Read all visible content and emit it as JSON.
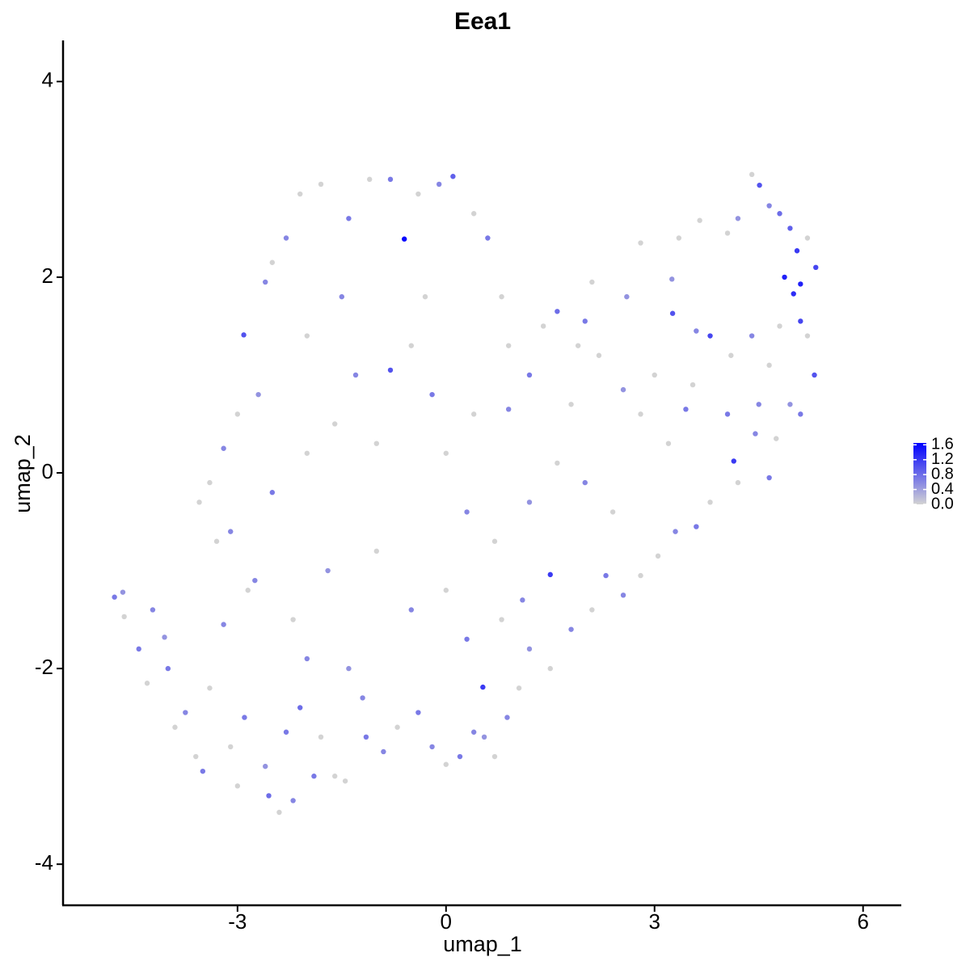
{
  "chart_data": {
    "type": "scatter",
    "title": "Eea1",
    "xlabel": "umap_1",
    "ylabel": "umap_2",
    "xlim": [
      -5.51,
      6.55
    ],
    "ylim": [
      -4.42,
      4.42
    ],
    "xticks": [
      -3,
      0,
      3,
      6
    ],
    "yticks": [
      -4,
      -2,
      0,
      2,
      4
    ],
    "x": [
      -4.77,
      -4.65,
      -4.63,
      -4.42,
      -4.22,
      -4.3,
      -4.05,
      -4.0,
      -3.9,
      -3.75,
      -3.6,
      -3.5,
      -3.4,
      -3.2,
      -3.1,
      -3.0,
      -2.9,
      -2.85,
      -2.75,
      -2.6,
      -2.55,
      -2.4,
      -2.3,
      -2.2,
      -2.1,
      -2.0,
      -1.9,
      -1.8,
      -1.6,
      -1.45,
      -1.4,
      -1.2,
      -1.15,
      -0.9,
      -0.7,
      -0.4,
      -0.2,
      0.0,
      0.2,
      0.4,
      0.55,
      0.7,
      0.88,
      1.05,
      1.2,
      1.5,
      1.8,
      2.1,
      2.3,
      2.55,
      2.8,
      3.05,
      3.3,
      3.6,
      3.8,
      4.2,
      4.65,
      4.45,
      4.75,
      4.95,
      5.1,
      5.3,
      5.2,
      5.1,
      5.0,
      5.1,
      4.87,
      5.05,
      5.32,
      5.2,
      4.95,
      4.8,
      4.65,
      4.51,
      4.4,
      4.2,
      4.05,
      3.65,
      3.35,
      3.25,
      3.26,
      3.6,
      3.8,
      4.1,
      4.4,
      4.65,
      4.5,
      4.05,
      3.55,
      3.45,
      3.2,
      2.8,
      2.55,
      2.2,
      2.0,
      2.1,
      2.8,
      2.6,
      1.9,
      1.6,
      1.4,
      1.2,
      0.9,
      0.8,
      0.6,
      0.4,
      0.1,
      -0.1,
      -0.4,
      -0.6,
      -0.8,
      -1.1,
      -1.4,
      -1.8,
      -2.1,
      -2.3,
      -2.5,
      -2.6,
      -2.91,
      -2.7,
      -3.0,
      -3.2,
      -3.4,
      -3.55,
      -3.3,
      -3.1,
      -2.5,
      -2.0,
      -1.6,
      -1.3,
      -0.8,
      -0.5,
      -0.2,
      0.0,
      0.3,
      0.7,
      1.2,
      1.6,
      2.0,
      2.4,
      1.5,
      0.53,
      4.14,
      -1.0,
      -0.5,
      0.0,
      0.3,
      -1.7,
      -2.2,
      0.8,
      1.1,
      -1.0,
      0.4,
      -1.5,
      -2.0,
      -0.3,
      0.9,
      1.8,
      3.0,
      4.8
    ],
    "values": [
      -1.27,
      -1.22,
      -1.47,
      -1.8,
      -1.4,
      -2.15,
      -1.68,
      -2.0,
      -2.6,
      -2.45,
      -2.9,
      -3.05,
      -2.2,
      -1.55,
      -2.8,
      -3.2,
      -2.5,
      -1.2,
      -1.1,
      -3.0,
      -3.3,
      -3.47,
      -2.65,
      -3.35,
      -2.4,
      -1.9,
      -3.1,
      -2.7,
      -3.1,
      -3.15,
      -2.0,
      -2.3,
      -2.7,
      -2.85,
      -2.6,
      -2.45,
      -2.8,
      -2.98,
      -2.9,
      -2.65,
      -2.7,
      -2.9,
      -2.5,
      -2.2,
      -1.8,
      -2.0,
      -1.6,
      -1.4,
      -1.05,
      -1.25,
      -1.05,
      -0.85,
      -0.6,
      -0.55,
      -0.3,
      -0.1,
      -0.05,
      0.4,
      0.35,
      0.7,
      0.6,
      1.0,
      1.4,
      1.55,
      1.83,
      1.93,
      2.0,
      2.27,
      2.1,
      2.4,
      2.5,
      2.65,
      2.73,
      2.94,
      3.05,
      2.6,
      2.45,
      2.58,
      2.4,
      1.98,
      1.63,
      1.45,
      1.4,
      1.2,
      1.4,
      1.1,
      0.7,
      0.6,
      0.9,
      0.65,
      0.3,
      0.6,
      0.85,
      1.2,
      1.55,
      1.95,
      2.35,
      1.8,
      1.3,
      1.65,
      1.5,
      1.0,
      0.65,
      1.8,
      2.4,
      2.65,
      3.03,
      2.95,
      2.85,
      2.39,
      3.0,
      3.0,
      2.6,
      2.95,
      2.85,
      2.4,
      2.15,
      1.95,
      1.41,
      0.8,
      0.6,
      0.25,
      -0.1,
      -0.3,
      -0.7,
      -0.6,
      -0.2,
      0.2,
      0.5,
      1.0,
      1.05,
      1.3,
      0.8,
      0.2,
      -0.4,
      -0.7,
      -0.3,
      0.1,
      -0.1,
      -0.4,
      -1.04,
      -2.19,
      0.12,
      -0.8,
      -1.4,
      -1.2,
      -1.7,
      -1.0,
      -1.5,
      -1.5,
      -1.3,
      0.3,
      0.6,
      1.8,
      1.4,
      1.8,
      1.3,
      0.7,
      1.0,
      1.5
    ],
    "expression": [
      0.7,
      0.5,
      0,
      0.7,
      0.6,
      0,
      0.5,
      0.7,
      0,
      0.6,
      0,
      0.7,
      0,
      0.6,
      0,
      0,
      0.7,
      0,
      0.6,
      0.5,
      0.8,
      0,
      0.7,
      0.6,
      0.8,
      0.6,
      0.7,
      0,
      0,
      0,
      0.5,
      0.6,
      0.7,
      0.6,
      0,
      0.7,
      0.6,
      0,
      0.7,
      0.6,
      0.5,
      0,
      0.6,
      0,
      0.5,
      0,
      0.6,
      0,
      0.7,
      0.6,
      0,
      0,
      0.6,
      0.7,
      0,
      0,
      0.7,
      0.6,
      0,
      0.5,
      0.7,
      1.0,
      0,
      1.1,
      1.3,
      1.4,
      1.4,
      1.2,
      1.1,
      0,
      0.9,
      0.8,
      0.6,
      1.0,
      0,
      0.5,
      0,
      0,
      0,
      0.5,
      1.0,
      0.6,
      1.1,
      0,
      0.6,
      0,
      0.6,
      0.7,
      0,
      0.7,
      0,
      0,
      0.5,
      0,
      0.7,
      0,
      0,
      0.5,
      0,
      0.8,
      0,
      0.7,
      0.6,
      0,
      0.7,
      0,
      0.9,
      0.6,
      0,
      1.6,
      0.7,
      0,
      0.7,
      0,
      0,
      0.6,
      0,
      0.6,
      1.0,
      0.5,
      0,
      0.6,
      0,
      0,
      0,
      0.6,
      0.7,
      0,
      0,
      0.6,
      1.0,
      0,
      0.7,
      0,
      0.6,
      0,
      0.5,
      0,
      0.6,
      0,
      1.2,
      1.2,
      1.2,
      0,
      0.6,
      0,
      0.7,
      0.5,
      0,
      0,
      0.6,
      0,
      0,
      0.6,
      0,
      0,
      0,
      0,
      0,
      0
    ],
    "colorbar": {
      "lim": [
        0,
        1.65
      ],
      "ticks": [
        {
          "value": 0,
          "label": "0.0"
        },
        0.4,
        0.8,
        1.2,
        1.6
      ],
      "low_color": "#d3d3d3",
      "high_color": "#0000ff"
    }
  }
}
